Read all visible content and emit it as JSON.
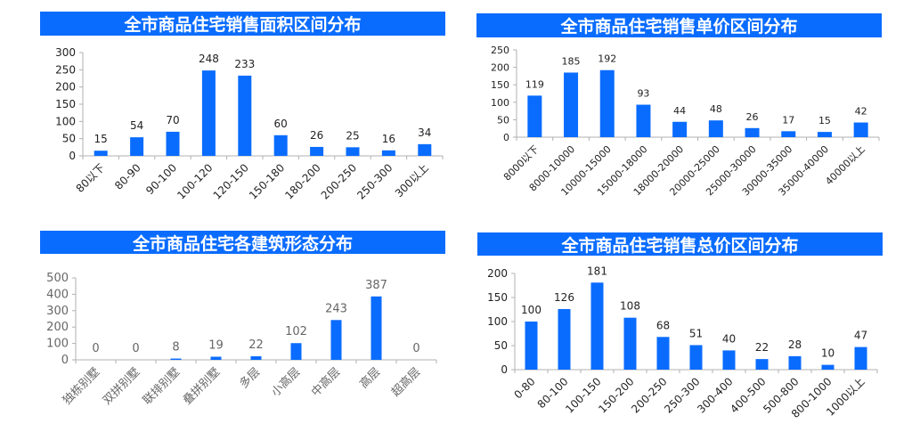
{
  "colors": {
    "bar": "#0a6cff",
    "title_bg": "#0a6cff",
    "title_text": "#ffffff",
    "axis": "#b0b0b0",
    "text": "#222222",
    "text_light": "#666666"
  },
  "chart_data": [
    {
      "id": "area",
      "type": "bar",
      "title": "全市商品住宅销售面积区间分布",
      "categories": [
        "80以下",
        "80-90",
        "90-100",
        "100-120",
        "120-150",
        "150-180",
        "180-200",
        "200-250",
        "250-300",
        "300以上"
      ],
      "values": [
        15,
        54,
        70,
        248,
        233,
        60,
        26,
        25,
        16,
        34
      ],
      "yticks": [
        0,
        50,
        100,
        150,
        200,
        250,
        300
      ],
      "ylim": [
        0,
        300
      ],
      "grid": false
    },
    {
      "id": "unit_price",
      "type": "bar",
      "title": "全市商品住宅销售单价区间分布",
      "categories": [
        "8000以下",
        "8000-10000",
        "10000-15000",
        "15000-18000",
        "18000-20000",
        "20000-25000",
        "25000-30000",
        "30000-35000",
        "35000-40000",
        "40000以上"
      ],
      "values": [
        119,
        185,
        192,
        93,
        44,
        48,
        26,
        17,
        15,
        42
      ],
      "yticks": [
        0,
        50,
        100,
        150,
        200,
        250
      ],
      "ylim": [
        0,
        250
      ],
      "grid": false
    },
    {
      "id": "form",
      "type": "bar",
      "title": "全市商品住宅各建筑形态分布",
      "categories": [
        "独栋别墅",
        "双拼别墅",
        "联排别墅",
        "叠拼别墅",
        "多层",
        "小高层",
        "中高层",
        "高层",
        "超高层"
      ],
      "values": [
        0,
        0,
        8,
        19,
        22,
        102,
        243,
        387,
        0
      ],
      "yticks": [
        0,
        100,
        200,
        300,
        400,
        500
      ],
      "ylim": [
        0,
        500
      ],
      "grid": false
    },
    {
      "id": "total_price",
      "type": "bar",
      "title": "全市商品住宅销售总价区间分布",
      "categories": [
        "0-80",
        "80-100",
        "100-150",
        "150-200",
        "200-250",
        "250-300",
        "300-400",
        "400-500",
        "500-800",
        "800-1000",
        "1000以上"
      ],
      "values": [
        100,
        126,
        181,
        108,
        68,
        51,
        40,
        22,
        28,
        10,
        47
      ],
      "yticks": [
        0,
        50,
        100,
        150,
        200
      ],
      "ylim": [
        0,
        200
      ],
      "grid": false
    }
  ]
}
